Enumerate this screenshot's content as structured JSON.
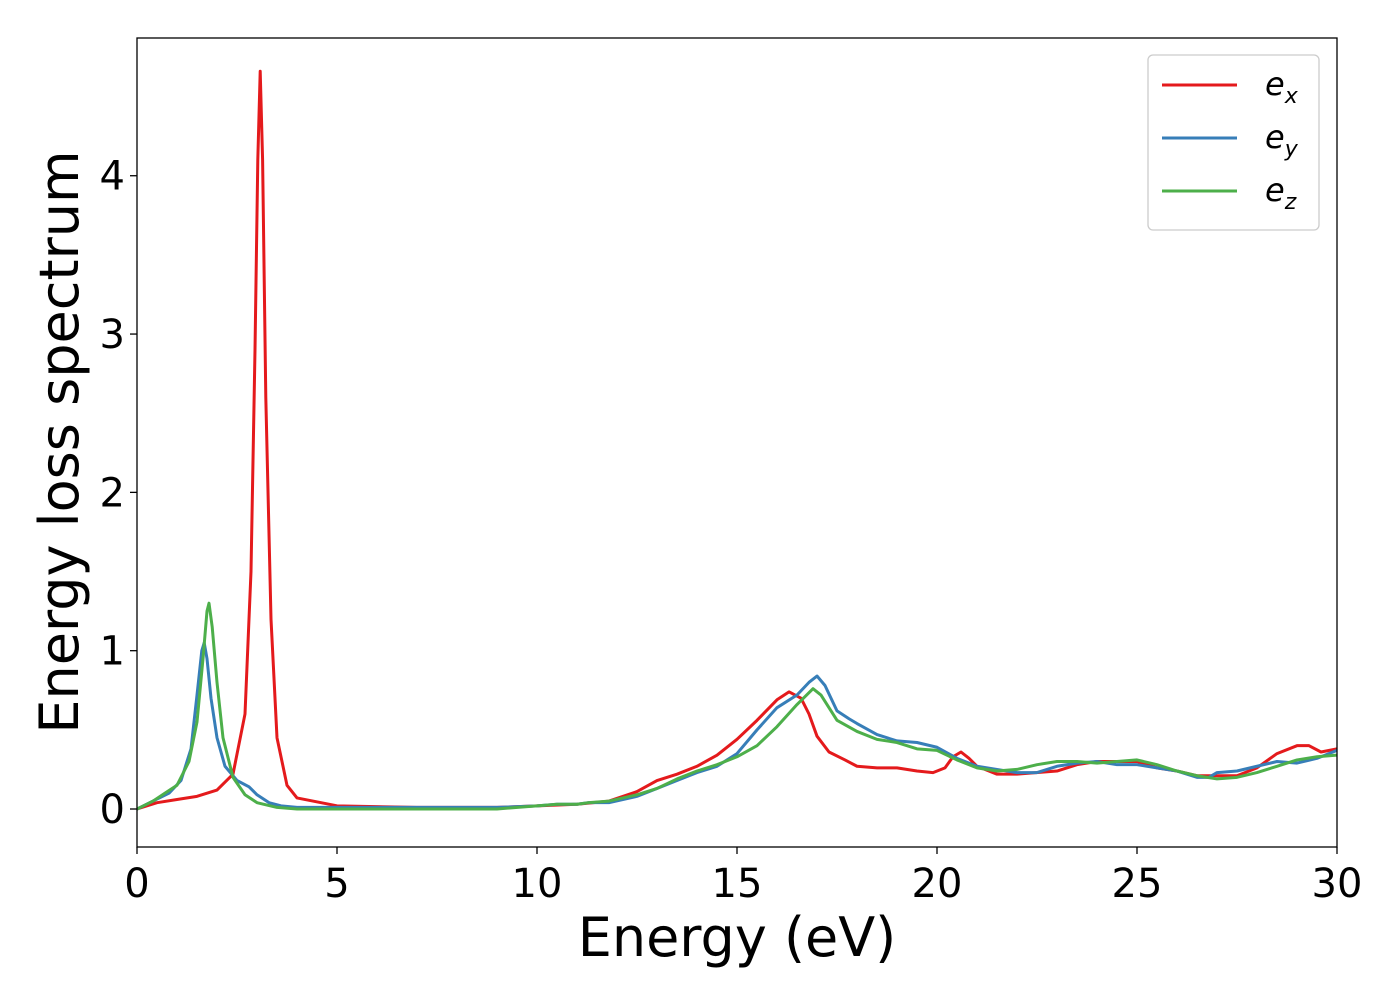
{
  "chart_data": {
    "type": "line",
    "title": "",
    "xlabel": "Energy (eV)",
    "ylabel": "Energy loss spectrum",
    "xlim": [
      0,
      30
    ],
    "ylim": [
      -0.24,
      4.87
    ],
    "xticks": [
      0,
      5,
      10,
      15,
      20,
      25,
      30
    ],
    "yticks": [
      0,
      1,
      2,
      3,
      4
    ],
    "grid": false,
    "legend_position": "top-right",
    "series": [
      {
        "name": "e_x",
        "label_base": "e",
        "label_sub": "x",
        "color": "#e41a1c",
        "points": [
          [
            0,
            0
          ],
          [
            0.5,
            0.04
          ],
          [
            1.0,
            0.06
          ],
          [
            1.5,
            0.08
          ],
          [
            2.0,
            0.12
          ],
          [
            2.4,
            0.22
          ],
          [
            2.7,
            0.6
          ],
          [
            2.85,
            1.5
          ],
          [
            2.95,
            2.9
          ],
          [
            3.02,
            4.1
          ],
          [
            3.08,
            4.66
          ],
          [
            3.14,
            4.1
          ],
          [
            3.22,
            2.6
          ],
          [
            3.35,
            1.2
          ],
          [
            3.5,
            0.45
          ],
          [
            3.75,
            0.15
          ],
          [
            4.0,
            0.07
          ],
          [
            5.0,
            0.02
          ],
          [
            7.0,
            0.01
          ],
          [
            9.0,
            0.01
          ],
          [
            10.0,
            0.02
          ],
          [
            11.0,
            0.03
          ],
          [
            11.8,
            0.05
          ],
          [
            12.5,
            0.11
          ],
          [
            13.0,
            0.18
          ],
          [
            13.5,
            0.22
          ],
          [
            14.0,
            0.27
          ],
          [
            14.5,
            0.34
          ],
          [
            15.0,
            0.44
          ],
          [
            15.5,
            0.56
          ],
          [
            16.0,
            0.69
          ],
          [
            16.3,
            0.74
          ],
          [
            16.6,
            0.7
          ],
          [
            16.8,
            0.6
          ],
          [
            17.0,
            0.46
          ],
          [
            17.3,
            0.36
          ],
          [
            17.7,
            0.31
          ],
          [
            18.0,
            0.27
          ],
          [
            18.5,
            0.26
          ],
          [
            19.0,
            0.26
          ],
          [
            19.5,
            0.24
          ],
          [
            19.9,
            0.23
          ],
          [
            20.2,
            0.26
          ],
          [
            20.4,
            0.33
          ],
          [
            20.6,
            0.36
          ],
          [
            20.8,
            0.32
          ],
          [
            21.0,
            0.27
          ],
          [
            21.5,
            0.22
          ],
          [
            22.0,
            0.22
          ],
          [
            23.0,
            0.24
          ],
          [
            23.5,
            0.28
          ],
          [
            24.0,
            0.3
          ],
          [
            25.0,
            0.3
          ],
          [
            25.5,
            0.26
          ],
          [
            26.0,
            0.24
          ],
          [
            26.5,
            0.21
          ],
          [
            27.0,
            0.21
          ],
          [
            27.5,
            0.21
          ],
          [
            28.0,
            0.26
          ],
          [
            28.5,
            0.35
          ],
          [
            29.0,
            0.4
          ],
          [
            29.3,
            0.4
          ],
          [
            29.6,
            0.36
          ],
          [
            30.0,
            0.38
          ]
        ]
      },
      {
        "name": "e_y",
        "label_base": "e",
        "label_sub": "y",
        "color": "#377eb8",
        "points": [
          [
            0,
            0
          ],
          [
            0.4,
            0.05
          ],
          [
            0.8,
            0.1
          ],
          [
            1.1,
            0.18
          ],
          [
            1.35,
            0.38
          ],
          [
            1.5,
            0.72
          ],
          [
            1.62,
            1.0
          ],
          [
            1.68,
            1.05
          ],
          [
            1.75,
            0.95
          ],
          [
            1.85,
            0.7
          ],
          [
            2.0,
            0.45
          ],
          [
            2.2,
            0.27
          ],
          [
            2.5,
            0.18
          ],
          [
            2.8,
            0.14
          ],
          [
            3.0,
            0.09
          ],
          [
            3.3,
            0.04
          ],
          [
            3.6,
            0.02
          ],
          [
            4.0,
            0.01
          ],
          [
            6.0,
            0.01
          ],
          [
            9.0,
            0.01
          ],
          [
            10.0,
            0.02
          ],
          [
            10.5,
            0.03
          ],
          [
            11.0,
            0.03
          ],
          [
            11.3,
            0.04
          ],
          [
            11.8,
            0.04
          ],
          [
            12.5,
            0.08
          ],
          [
            13.0,
            0.13
          ],
          [
            13.5,
            0.18
          ],
          [
            14.0,
            0.23
          ],
          [
            14.5,
            0.27
          ],
          [
            15.0,
            0.35
          ],
          [
            15.5,
            0.5
          ],
          [
            16.0,
            0.64
          ],
          [
            16.5,
            0.72
          ],
          [
            16.8,
            0.8
          ],
          [
            17.0,
            0.84
          ],
          [
            17.2,
            0.78
          ],
          [
            17.5,
            0.62
          ],
          [
            17.8,
            0.57
          ],
          [
            18.0,
            0.54
          ],
          [
            18.5,
            0.47
          ],
          [
            19.0,
            0.43
          ],
          [
            19.5,
            0.42
          ],
          [
            20.0,
            0.39
          ],
          [
            20.5,
            0.32
          ],
          [
            21.0,
            0.27
          ],
          [
            21.5,
            0.25
          ],
          [
            22.0,
            0.23
          ],
          [
            22.5,
            0.23
          ],
          [
            23.0,
            0.27
          ],
          [
            23.5,
            0.29
          ],
          [
            24.0,
            0.3
          ],
          [
            24.5,
            0.28
          ],
          [
            25.0,
            0.28
          ],
          [
            25.5,
            0.26
          ],
          [
            26.0,
            0.24
          ],
          [
            26.5,
            0.2
          ],
          [
            26.8,
            0.2
          ],
          [
            27.0,
            0.23
          ],
          [
            27.5,
            0.24
          ],
          [
            28.0,
            0.27
          ],
          [
            28.5,
            0.3
          ],
          [
            29.0,
            0.29
          ],
          [
            29.5,
            0.32
          ],
          [
            30.0,
            0.37
          ]
        ]
      },
      {
        "name": "e_z",
        "label_base": "e",
        "label_sub": "z",
        "color": "#4daf4a",
        "points": [
          [
            0,
            0
          ],
          [
            0.4,
            0.05
          ],
          [
            0.7,
            0.1
          ],
          [
            1.0,
            0.15
          ],
          [
            1.3,
            0.3
          ],
          [
            1.5,
            0.55
          ],
          [
            1.65,
            0.95
          ],
          [
            1.75,
            1.25
          ],
          [
            1.8,
            1.3
          ],
          [
            1.88,
            1.15
          ],
          [
            2.0,
            0.8
          ],
          [
            2.15,
            0.45
          ],
          [
            2.4,
            0.2
          ],
          [
            2.7,
            0.09
          ],
          [
            3.0,
            0.04
          ],
          [
            3.5,
            0.01
          ],
          [
            4.0,
            0.0
          ],
          [
            6.0,
            0.0
          ],
          [
            9.0,
            0.0
          ],
          [
            10.0,
            0.02
          ],
          [
            10.5,
            0.03
          ],
          [
            11.0,
            0.03
          ],
          [
            11.3,
            0.04
          ],
          [
            11.8,
            0.05
          ],
          [
            12.5,
            0.09
          ],
          [
            13.0,
            0.13
          ],
          [
            13.5,
            0.19
          ],
          [
            14.0,
            0.24
          ],
          [
            14.5,
            0.28
          ],
          [
            15.0,
            0.33
          ],
          [
            15.5,
            0.4
          ],
          [
            16.0,
            0.52
          ],
          [
            16.5,
            0.66
          ],
          [
            16.9,
            0.76
          ],
          [
            17.1,
            0.72
          ],
          [
            17.5,
            0.56
          ],
          [
            18.0,
            0.49
          ],
          [
            18.5,
            0.44
          ],
          [
            19.0,
            0.42
          ],
          [
            19.5,
            0.38
          ],
          [
            20.0,
            0.37
          ],
          [
            20.5,
            0.31
          ],
          [
            21.0,
            0.26
          ],
          [
            21.5,
            0.24
          ],
          [
            22.0,
            0.25
          ],
          [
            22.5,
            0.28
          ],
          [
            23.0,
            0.3
          ],
          [
            23.5,
            0.3
          ],
          [
            24.0,
            0.29
          ],
          [
            24.5,
            0.3
          ],
          [
            25.0,
            0.31
          ],
          [
            25.5,
            0.28
          ],
          [
            26.0,
            0.24
          ],
          [
            26.5,
            0.21
          ],
          [
            27.0,
            0.19
          ],
          [
            27.5,
            0.2
          ],
          [
            28.0,
            0.23
          ],
          [
            28.5,
            0.27
          ],
          [
            29.0,
            0.31
          ],
          [
            29.5,
            0.33
          ],
          [
            30.0,
            0.34
          ]
        ]
      }
    ]
  }
}
